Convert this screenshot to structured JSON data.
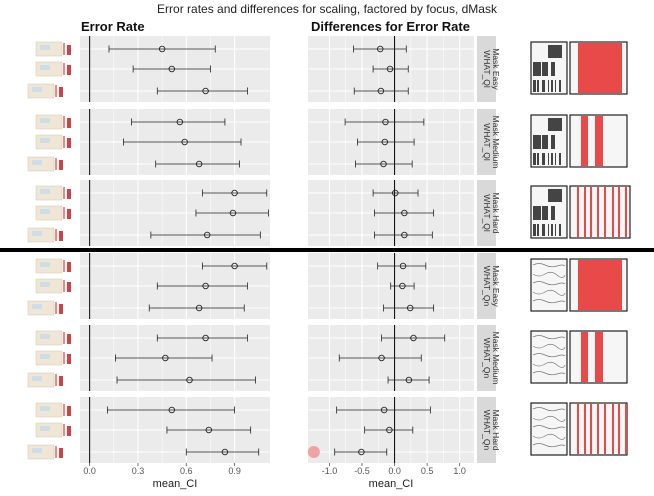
{
  "figure_title": "Error rates and differences for scaling, factored by focus, dMask",
  "chart_data": [
    {
      "type": "scatter",
      "title": "Error Rate",
      "xlabel": "mean_CI",
      "xlim": [
        -0.06,
        1.12
      ],
      "x_ticks": [
        "0.0",
        "0.3",
        "0.6",
        "0.9"
      ],
      "x_tick_values": [
        0.0,
        0.3,
        0.6,
        0.9
      ],
      "reference_line": 0.0,
      "grid": true,
      "facets": [
        {
          "strip": "WHAT_Ql\nMask Easy",
          "rows": [
            {
              "mean": 0.45,
              "low": 0.12,
              "high": 0.78
            },
            {
              "mean": 0.51,
              "low": 0.27,
              "high": 0.75
            },
            {
              "mean": 0.72,
              "low": 0.42,
              "high": 0.98
            }
          ]
        },
        {
          "strip": "WHAT_Ql\nMask Medium",
          "rows": [
            {
              "mean": 0.56,
              "low": 0.26,
              "high": 0.84
            },
            {
              "mean": 0.59,
              "low": 0.21,
              "high": 0.94
            },
            {
              "mean": 0.68,
              "low": 0.41,
              "high": 0.93
            }
          ]
        },
        {
          "strip": "WHAT_Ql\nMask Hard",
          "rows": [
            {
              "mean": 0.9,
              "low": 0.7,
              "high": 1.1
            },
            {
              "mean": 0.89,
              "low": 0.66,
              "high": 1.11
            },
            {
              "mean": 0.73,
              "low": 0.38,
              "high": 1.06
            }
          ]
        },
        {
          "strip": "WHAT_Qn\nMask Easy",
          "rows": [
            {
              "mean": 0.9,
              "low": 0.7,
              "high": 1.1
            },
            {
              "mean": 0.72,
              "low": 0.42,
              "high": 0.98
            },
            {
              "mean": 0.68,
              "low": 0.37,
              "high": 0.96
            }
          ]
        },
        {
          "strip": "WHAT_Qn\nMask Medium",
          "rows": [
            {
              "mean": 0.72,
              "low": 0.42,
              "high": 0.98
            },
            {
              "mean": 0.47,
              "low": 0.16,
              "high": 0.76
            },
            {
              "mean": 0.62,
              "low": 0.17,
              "high": 1.03
            }
          ]
        },
        {
          "strip": "WHAT_Qn\nMask Hard",
          "rows": [
            {
              "mean": 0.51,
              "low": 0.11,
              "high": 0.9
            },
            {
              "mean": 0.74,
              "low": 0.48,
              "high": 1.0
            },
            {
              "mean": 0.84,
              "low": 0.6,
              "high": 1.05
            }
          ]
        }
      ]
    },
    {
      "type": "scatter",
      "title": "Differences for Error Rate",
      "xlabel": "mean_CI",
      "xlim": [
        -1.33,
        1.22
      ],
      "x_ticks": [
        "-1.0",
        "-0.5",
        "0.0",
        "0.5",
        "1.0"
      ],
      "x_tick_values": [
        -1.0,
        -0.5,
        0.0,
        0.5,
        1.0
      ],
      "reference_line": 0.0,
      "grid": true,
      "facets": [
        {
          "rows": [
            {
              "mean": -0.22,
              "low": -0.63,
              "high": 0.18
            },
            {
              "mean": -0.07,
              "low": -0.33,
              "high": 0.21
            },
            {
              "mean": -0.21,
              "low": -0.62,
              "high": 0.21
            }
          ]
        },
        {
          "rows": [
            {
              "mean": -0.14,
              "low": -0.76,
              "high": 0.45
            },
            {
              "mean": -0.15,
              "low": -0.57,
              "high": 0.3
            },
            {
              "mean": -0.17,
              "low": -0.6,
              "high": 0.27
            }
          ]
        },
        {
          "rows": [
            {
              "mean": 0.01,
              "low": -0.33,
              "high": 0.36
            },
            {
              "mean": 0.15,
              "low": -0.31,
              "high": 0.6
            },
            {
              "mean": 0.15,
              "low": -0.31,
              "high": 0.58
            }
          ]
        },
        {
          "rows": [
            {
              "mean": 0.13,
              "low": -0.26,
              "high": 0.48
            },
            {
              "mean": 0.12,
              "low": -0.06,
              "high": 0.3
            },
            {
              "mean": 0.24,
              "low": -0.17,
              "high": 0.6
            }
          ]
        },
        {
          "rows": [
            {
              "mean": 0.29,
              "low": -0.2,
              "high": 0.77
            },
            {
              "mean": -0.2,
              "low": -0.85,
              "high": 0.41
            },
            {
              "mean": 0.22,
              "low": -0.1,
              "high": 0.53
            }
          ]
        },
        {
          "rows": [
            {
              "mean": -0.16,
              "low": -0.89,
              "high": 0.55
            },
            {
              "mean": -0.08,
              "low": -0.46,
              "high": 0.28
            },
            {
              "mean": -0.51,
              "low": -0.92,
              "high": -0.12
            }
          ]
        }
      ],
      "highlight_marker": {
        "x": -1.24,
        "color": "#f08a8a"
      }
    }
  ],
  "colors": {
    "panel": "#ebebeb",
    "grid": "#ffffff",
    "strip": "#d9d9d9",
    "accent_red": "#e84a4a",
    "divider": "#000000"
  }
}
